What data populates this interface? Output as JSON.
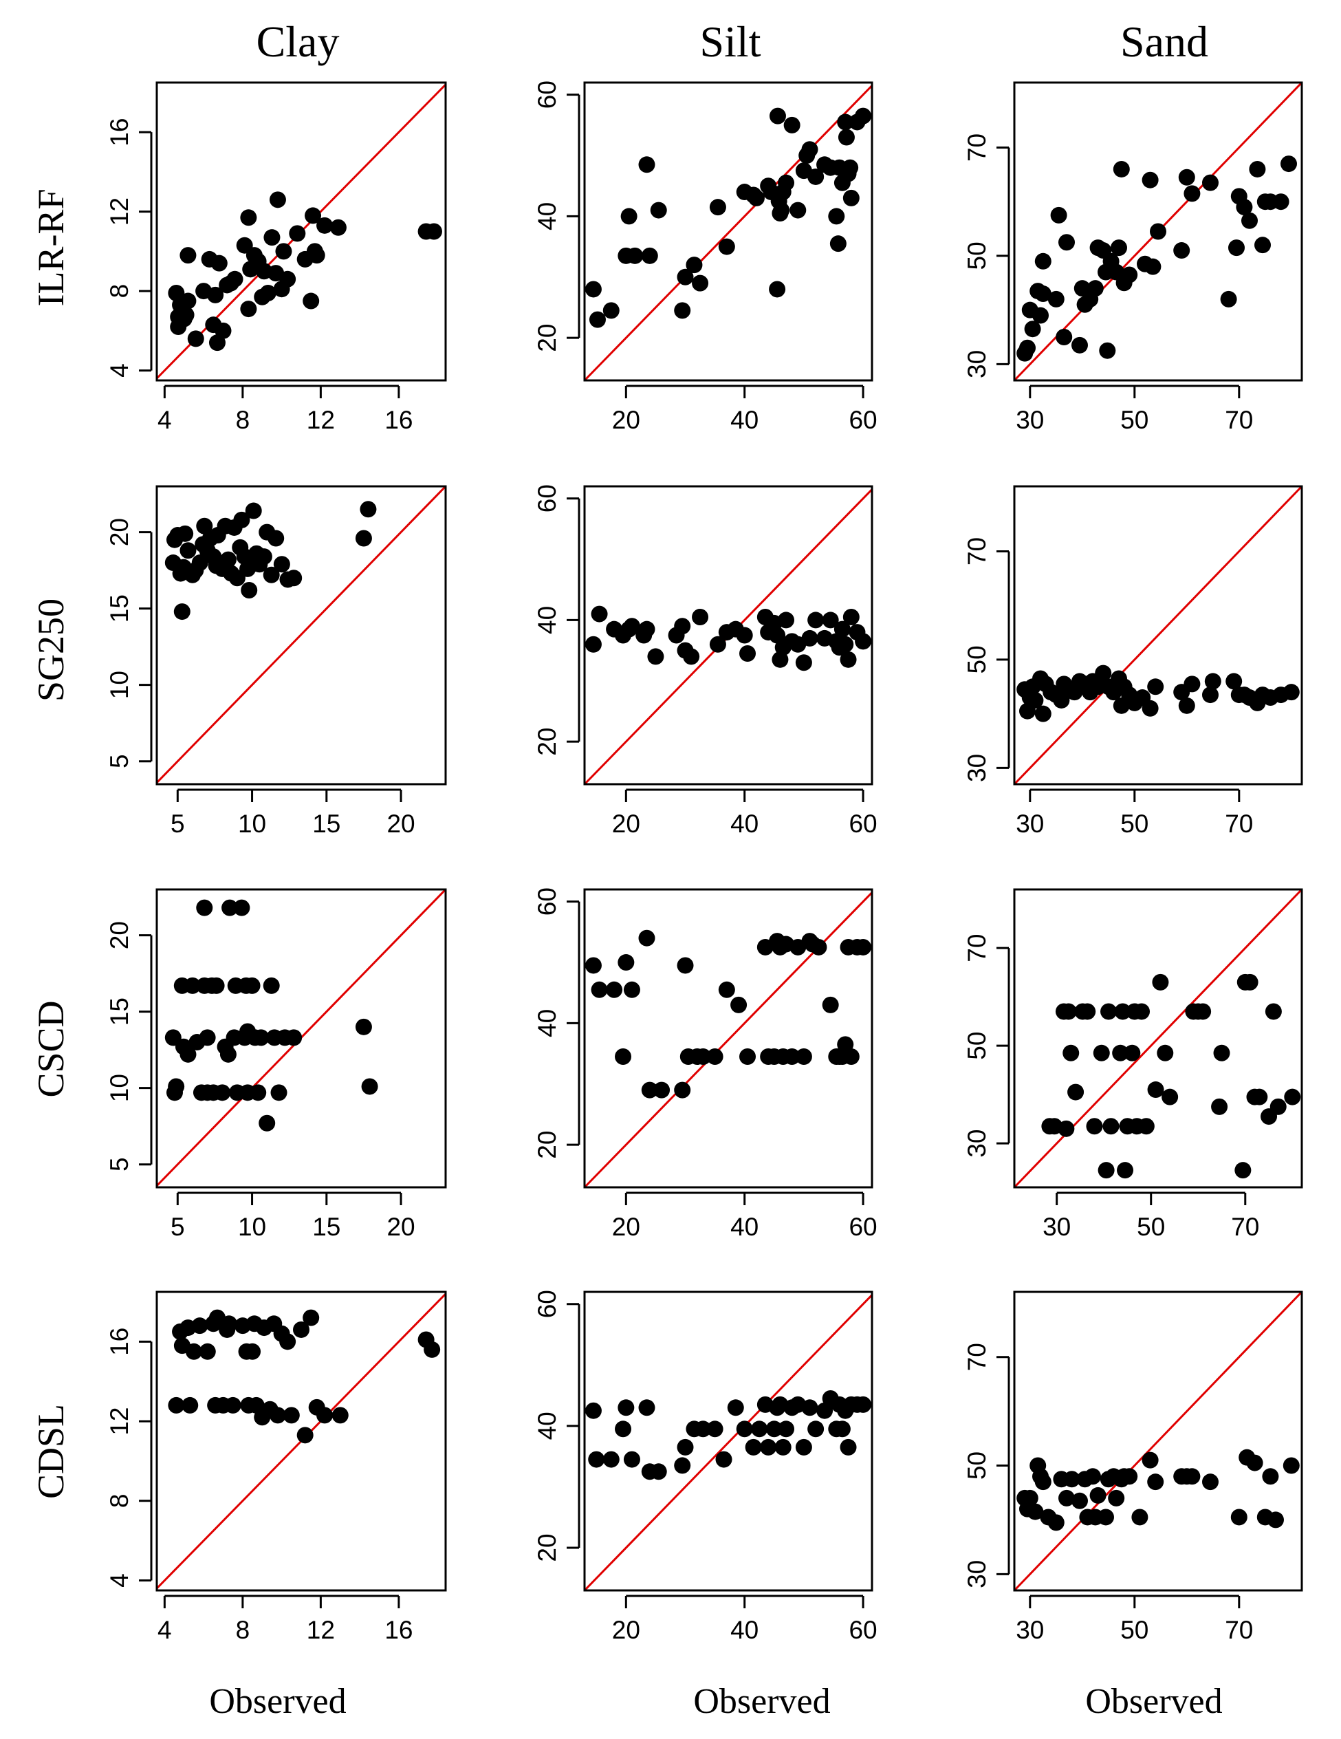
{
  "figure": {
    "column_titles": [
      "Clay",
      "Silt",
      "Sand"
    ],
    "row_labels": [
      "ILR-RF",
      "SG250",
      "CSCD",
      "CDSL"
    ],
    "x_axis_label": "Observed",
    "colors": {
      "points": "#000000",
      "reference_line": "#e00000"
    }
  },
  "chart_data": [
    {
      "id": "ilr-clay",
      "row": "ILR-RF",
      "col": "Clay",
      "type": "scatter",
      "xlim": [
        3.6,
        18.4
      ],
      "ylim": [
        3.5,
        18.5
      ],
      "xticks": [
        4,
        8,
        12,
        16
      ],
      "yticks": [
        4,
        8,
        12,
        16
      ],
      "xticks_shown": true,
      "reference_line": "1:1",
      "x": [
        4.6,
        4.7,
        4.7,
        4.8,
        5.0,
        5.1,
        5.2,
        5.2,
        5.6,
        6.0,
        6.3,
        6.5,
        6.6,
        6.7,
        6.8,
        7.0,
        7.2,
        7.4,
        7.6,
        8.1,
        8.3,
        8.3,
        8.4,
        8.6,
        8.8,
        9.0,
        9.1,
        9.3,
        9.5,
        9.7,
        9.8,
        10.0,
        10.1,
        10.3,
        10.8,
        11.2,
        11.5,
        11.6,
        11.7,
        11.8,
        12.2,
        12.9,
        17.4,
        17.8
      ],
      "y": [
        7.9,
        6.2,
        6.7,
        7.3,
        6.6,
        6.8,
        9.8,
        7.5,
        5.6,
        8.0,
        9.6,
        6.3,
        7.8,
        5.4,
        9.4,
        6.0,
        8.3,
        8.4,
        8.6,
        10.3,
        7.1,
        11.7,
        9.1,
        9.8,
        9.5,
        7.7,
        9.0,
        7.9,
        10.7,
        8.9,
        12.6,
        8.1,
        10.0,
        8.6,
        10.9,
        9.6,
        7.5,
        11.8,
        10.0,
        9.8,
        11.3,
        11.2,
        11.0,
        11.0
      ]
    },
    {
      "id": "ilr-silt",
      "row": "ILR-RF",
      "col": "Silt",
      "type": "scatter",
      "xlim": [
        13,
        61.5
      ],
      "ylim": [
        13,
        62
      ],
      "xticks": [
        20,
        40,
        60
      ],
      "yticks": [
        20,
        40,
        60
      ],
      "xticks_shown": true,
      "reference_line": "1:1",
      "x": [
        14.5,
        15.2,
        17.5,
        20.0,
        20.5,
        21.5,
        23.5,
        24.0,
        25.5,
        29.5,
        30.0,
        31.5,
        32.5,
        35.5,
        37.0,
        40.0,
        41.5,
        42.0,
        44.0,
        44.5,
        45.5,
        45.6,
        45.8,
        46.0,
        46.2,
        46.5,
        47.0,
        48.0,
        49.0,
        50.0,
        50.5,
        51.0,
        52.0,
        53.5,
        54.5,
        55.5,
        55.8,
        56.0,
        56.5,
        57.0,
        57.2,
        57.5,
        57.8,
        58.0,
        59.0,
        60.0
      ],
      "y": [
        28.0,
        23.0,
        24.5,
        33.5,
        40.0,
        33.5,
        48.5,
        33.5,
        41.0,
        24.5,
        30.0,
        32.0,
        29.0,
        41.5,
        35.0,
        44.0,
        43.5,
        43.0,
        45.0,
        44.0,
        28.0,
        56.5,
        42.5,
        40.5,
        41.0,
        44.0,
        45.5,
        55.0,
        41.0,
        47.5,
        50.0,
        51.0,
        46.5,
        48.5,
        48.0,
        40.0,
        35.5,
        48.0,
        45.5,
        55.5,
        53.0,
        47.0,
        48.0,
        43.0,
        55.5,
        56.5
      ]
    },
    {
      "id": "ilr-sand",
      "row": "ILR-RF",
      "col": "Sand",
      "type": "scatter",
      "xlim": [
        27,
        82
      ],
      "ylim": [
        27,
        82
      ],
      "xticks": [
        30,
        50,
        70
      ],
      "yticks": [
        30,
        50,
        70
      ],
      "xticks_shown": true,
      "reference_line": "1:1",
      "x": [
        29.0,
        29.5,
        30.0,
        30.5,
        31.5,
        32.0,
        32.5,
        32.5,
        35.0,
        35.5,
        36.5,
        37.0,
        39.5,
        40.0,
        40.5,
        41.5,
        42.5,
        43.0,
        44.0,
        44.5,
        44.8,
        45.5,
        46.5,
        47.0,
        47.5,
        48.0,
        49.0,
        52.0,
        53.0,
        53.5,
        54.5,
        59.0,
        60.0,
        61.0,
        64.5,
        68.0,
        69.5,
        70.0,
        71.0,
        72.0,
        73.5,
        74.5,
        75.0,
        76.0,
        78.0,
        79.5
      ],
      "y": [
        32.0,
        33.0,
        40.0,
        36.5,
        43.5,
        39.0,
        49.0,
        43.0,
        42.0,
        57.5,
        35.0,
        52.5,
        33.5,
        44.0,
        41.0,
        42.0,
        44.0,
        51.5,
        51.0,
        47.0,
        32.5,
        49.0,
        47.0,
        51.5,
        66.0,
        45.0,
        46.5,
        48.5,
        64.0,
        48.0,
        54.5,
        51.0,
        64.5,
        61.5,
        63.5,
        42.0,
        51.5,
        61.0,
        59.0,
        56.5,
        66.0,
        52.0,
        60.0,
        60.0,
        60.0,
        67.0
      ]
    },
    {
      "id": "sg250-clay",
      "row": "SG250",
      "col": "Clay",
      "type": "scatter",
      "xlim": [
        3.6,
        23
      ],
      "ylim": [
        3.5,
        23
      ],
      "xticks": [
        5,
        10,
        15,
        20
      ],
      "yticks": [
        5,
        10,
        15,
        20
      ],
      "xticks_shown": true,
      "reference_line": "1:1",
      "x": [
        4.7,
        4.8,
        5.0,
        5.2,
        5.3,
        5.4,
        5.5,
        5.7,
        6.0,
        6.2,
        6.5,
        6.7,
        6.8,
        7.0,
        7.2,
        7.4,
        7.6,
        7.7,
        8.0,
        8.2,
        8.4,
        8.6,
        8.8,
        9.0,
        9.2,
        9.3,
        9.5,
        9.7,
        9.8,
        10.0,
        10.1,
        10.3,
        10.5,
        10.8,
        11.0,
        11.3,
        11.6,
        12.0,
        12.4,
        12.8,
        17.5,
        17.8
      ],
      "y": [
        18.0,
        19.5,
        19.8,
        17.3,
        14.8,
        17.7,
        19.9,
        18.8,
        17.2,
        17.5,
        18.0,
        19.2,
        20.4,
        18.8,
        19.6,
        18.4,
        17.8,
        19.8,
        17.6,
        20.4,
        18.2,
        17.3,
        20.3,
        17.0,
        19.0,
        20.8,
        18.4,
        17.6,
        16.2,
        17.9,
        21.4,
        18.6,
        17.9,
        18.4,
        20.0,
        17.2,
        19.6,
        17.9,
        16.9,
        17.0,
        19.6,
        21.5
      ]
    },
    {
      "id": "sg250-silt",
      "row": "SG250",
      "col": "Silt",
      "type": "scatter",
      "xlim": [
        13,
        61.5
      ],
      "ylim": [
        13,
        62
      ],
      "xticks": [
        20,
        40,
        60
      ],
      "yticks": [
        20,
        40,
        60
      ],
      "xticks_shown": true,
      "reference_line": "1:1",
      "x": [
        14.5,
        15.5,
        18.0,
        19.5,
        20.5,
        21.0,
        23.0,
        23.5,
        25.0,
        28.5,
        29.5,
        30.0,
        31.0,
        32.5,
        35.5,
        37.0,
        38.5,
        40.0,
        40.5,
        43.5,
        44.0,
        45.0,
        45.5,
        46.0,
        46.5,
        47.0,
        48.0,
        49.0,
        50.0,
        51.0,
        52.0,
        53.5,
        54.5,
        55.5,
        56.0,
        56.5,
        57.0,
        57.5,
        58.0,
        59.0,
        60.0
      ],
      "y": [
        36.0,
        41.0,
        38.5,
        37.5,
        38.5,
        39.0,
        37.5,
        38.5,
        34.0,
        37.5,
        39.0,
        35.0,
        34.0,
        40.5,
        36.0,
        38.0,
        38.5,
        37.5,
        34.5,
        40.5,
        38.0,
        39.5,
        37.5,
        33.5,
        35.5,
        40.0,
        36.5,
        36.0,
        33.0,
        37.0,
        40.0,
        37.0,
        40.0,
        36.5,
        35.5,
        38.5,
        36.0,
        33.5,
        40.5,
        38.0,
        36.5
      ]
    },
    {
      "id": "sg250-sand",
      "row": "SG250",
      "col": "Sand",
      "type": "scatter",
      "xlim": [
        27,
        82
      ],
      "ylim": [
        27,
        82
      ],
      "xticks": [
        30,
        50,
        70
      ],
      "yticks": [
        30,
        50,
        70
      ],
      "xticks_shown": true,
      "reference_line": "1:1",
      "x": [
        29.0,
        29.5,
        30.0,
        30.5,
        31.0,
        32.0,
        32.5,
        33.0,
        34.0,
        35.0,
        36.0,
        36.5,
        37.5,
        38.5,
        39.5,
        40.5,
        41.5,
        42.0,
        43.0,
        44.0,
        45.0,
        46.0,
        47.0,
        47.5,
        48.0,
        49.0,
        50.0,
        51.5,
        53.0,
        54.0,
        59.0,
        60.0,
        61.0,
        64.5,
        65.0,
        69.0,
        70.0,
        71.0,
        72.0,
        73.5,
        74.5,
        76.0,
        78.0,
        80.0
      ],
      "y": [
        44.5,
        40.5,
        43.0,
        45.0,
        42.5,
        46.5,
        40.0,
        45.5,
        44.0,
        43.5,
        42.5,
        45.5,
        44.5,
        44.0,
        46.0,
        45.5,
        44.0,
        46.0,
        45.0,
        47.5,
        45.0,
        44.0,
        46.5,
        41.5,
        45.0,
        43.5,
        42.0,
        43.0,
        41.0,
        45.0,
        44.0,
        41.5,
        45.5,
        43.5,
        46.0,
        46.0,
        43.5,
        43.5,
        43.0,
        42.0,
        43.5,
        43.0,
        43.5,
        44.0
      ]
    },
    {
      "id": "cscd-clay",
      "row": "CSCD",
      "col": "Clay",
      "type": "scatter",
      "xlim": [
        3.6,
        23
      ],
      "ylim": [
        3.5,
        23
      ],
      "xticks": [
        5,
        10,
        15,
        20
      ],
      "yticks": [
        5,
        10,
        15,
        20
      ],
      "xticks_shown": true,
      "reference_line": "1:1",
      "x": [
        4.7,
        4.8,
        4.9,
        5.3,
        5.4,
        5.7,
        6.0,
        6.3,
        6.6,
        6.8,
        6.8,
        7.0,
        7.0,
        7.3,
        7.4,
        7.6,
        8.0,
        8.2,
        8.4,
        8.5,
        8.8,
        8.9,
        9.0,
        9.3,
        9.5,
        9.6,
        9.7,
        9.7,
        10.0,
        10.2,
        10.4,
        10.6,
        11.0,
        11.3,
        11.5,
        11.8,
        12.2,
        12.8,
        17.5,
        17.9
      ],
      "y": [
        13.3,
        9.7,
        10.1,
        16.7,
        12.7,
        12.2,
        16.7,
        13.0,
        9.7,
        16.7,
        21.8,
        13.3,
        9.7,
        16.7,
        9.7,
        16.7,
        9.7,
        12.7,
        12.2,
        21.8,
        13.3,
        16.7,
        9.7,
        21.8,
        13.3,
        16.7,
        9.7,
        13.7,
        16.7,
        13.3,
        9.7,
        13.3,
        7.7,
        16.7,
        13.3,
        9.7,
        13.3,
        13.3,
        14.0,
        10.1
      ]
    },
    {
      "id": "cscd-silt",
      "row": "CSCD",
      "col": "Silt",
      "type": "scatter",
      "xlim": [
        13,
        61.5
      ],
      "ylim": [
        13,
        62
      ],
      "xticks": [
        20,
        40,
        60
      ],
      "yticks": [
        20,
        40,
        60
      ],
      "xticks_shown": true,
      "reference_line": "1:1",
      "x": [
        14.5,
        15.5,
        18.0,
        19.5,
        20.0,
        21.0,
        23.5,
        24.0,
        26.0,
        29.5,
        30.0,
        30.5,
        32.0,
        33.0,
        35.0,
        37.0,
        39.0,
        40.5,
        43.5,
        44.0,
        45.0,
        45.5,
        46.0,
        46.5,
        47.0,
        48.0,
        49.0,
        50.0,
        51.0,
        51.5,
        52.5,
        54.5,
        55.5,
        56.0,
        56.5,
        57.0,
        57.5,
        58.0,
        59.0,
        60.0
      ],
      "y": [
        49.5,
        45.5,
        45.5,
        34.5,
        50.0,
        45.5,
        54.0,
        29.0,
        29.0,
        29.0,
        49.5,
        34.5,
        34.5,
        34.5,
        34.5,
        45.5,
        43.0,
        34.5,
        52.5,
        34.5,
        34.5,
        53.5,
        52.5,
        34.5,
        53.0,
        34.5,
        52.5,
        34.5,
        53.5,
        53.0,
        52.5,
        43.0,
        34.5,
        34.5,
        34.5,
        36.5,
        52.5,
        34.5,
        52.5,
        52.5
      ]
    },
    {
      "id": "cscd-sand",
      "row": "CSCD",
      "col": "Sand",
      "type": "scatter",
      "xlim": [
        21,
        82
      ],
      "ylim": [
        21,
        82
      ],
      "xticks": [
        30,
        50,
        70
      ],
      "yticks": [
        30,
        50,
        70
      ],
      "xticks_shown": true,
      "reference_line": "1:1",
      "x": [
        28.5,
        29.5,
        31.5,
        32.0,
        32.5,
        33.0,
        34.0,
        35.5,
        36.5,
        38.0,
        39.5,
        40.5,
        41.0,
        41.5,
        43.5,
        44.0,
        44.5,
        45.0,
        46.0,
        46.5,
        47.0,
        48.0,
        49.0,
        51.0,
        52.0,
        53.0,
        54.0,
        59.0,
        60.0,
        61.0,
        64.5,
        65.0,
        69.5,
        70.0,
        71.0,
        72.0,
        73.0,
        75.0,
        76.0,
        77.0,
        80.0
      ],
      "y": [
        33.5,
        33.5,
        57.0,
        33.0,
        57.0,
        48.5,
        40.5,
        57.0,
        57.0,
        33.5,
        48.5,
        24.5,
        57.0,
        33.5,
        48.5,
        57.0,
        24.5,
        33.5,
        48.5,
        57.0,
        33.5,
        57.0,
        33.5,
        41.0,
        63.0,
        48.5,
        39.5,
        57.0,
        57.0,
        57.0,
        37.5,
        48.5,
        24.5,
        63.0,
        63.0,
        39.5,
        39.5,
        35.5,
        57.0,
        37.5,
        39.5
      ]
    },
    {
      "id": "cdsl-clay",
      "row": "CDSL",
      "col": "Clay",
      "type": "scatter",
      "xlim": [
        3.6,
        18.4
      ],
      "ylim": [
        3.5,
        18.5
      ],
      "xticks": [
        4,
        8,
        12,
        16
      ],
      "yticks": [
        4,
        8,
        12,
        16
      ],
      "xticks_shown": true,
      "reference_line": "1:1",
      "x": [
        4.6,
        4.8,
        4.9,
        5.2,
        5.3,
        5.5,
        5.8,
        6.2,
        6.5,
        6.6,
        6.7,
        7.0,
        7.2,
        7.3,
        7.5,
        8.0,
        8.2,
        8.3,
        8.5,
        8.6,
        8.7,
        9.0,
        9.1,
        9.4,
        9.6,
        9.8,
        10.0,
        10.3,
        10.5,
        11.0,
        11.2,
        11.5,
        11.8,
        12.2,
        13.0,
        17.4,
        17.7
      ],
      "y": [
        12.8,
        16.5,
        15.8,
        16.7,
        12.8,
        15.5,
        16.8,
        15.5,
        16.9,
        12.8,
        17.2,
        12.8,
        16.6,
        16.9,
        12.8,
        16.8,
        15.5,
        12.8,
        15.5,
        16.9,
        12.8,
        12.2,
        16.7,
        12.6,
        16.9,
        12.3,
        16.4,
        16.0,
        12.3,
        16.6,
        11.3,
        17.2,
        12.7,
        12.3,
        12.3,
        16.1,
        15.6
      ]
    },
    {
      "id": "cdsl-silt",
      "row": "CDSL",
      "col": "Silt",
      "type": "scatter",
      "xlim": [
        13,
        61.5
      ],
      "ylim": [
        13,
        62
      ],
      "xticks": [
        20,
        40,
        60
      ],
      "yticks": [
        20,
        40,
        60
      ],
      "xticks_shown": true,
      "reference_line": "1:1",
      "x": [
        14.5,
        15.0,
        17.5,
        19.5,
        20.0,
        21.0,
        23.5,
        24.0,
        25.5,
        29.5,
        30.0,
        31.5,
        33.0,
        35.0,
        36.5,
        38.5,
        40.0,
        41.5,
        42.5,
        43.5,
        44.0,
        45.0,
        45.5,
        46.0,
        46.5,
        47.0,
        48.0,
        49.0,
        50.0,
        51.0,
        52.0,
        53.5,
        54.5,
        55.5,
        56.0,
        56.5,
        57.0,
        57.5,
        58.0,
        59.0,
        60.0
      ],
      "y": [
        42.5,
        34.5,
        34.5,
        39.5,
        43.0,
        34.5,
        43.0,
        32.5,
        32.5,
        33.5,
        36.5,
        39.5,
        39.5,
        39.5,
        34.5,
        43.0,
        39.5,
        36.5,
        39.5,
        43.5,
        36.5,
        39.5,
        43.0,
        43.5,
        36.5,
        39.5,
        43.0,
        43.5,
        36.5,
        43.0,
        39.5,
        42.5,
        44.5,
        39.5,
        43.5,
        39.5,
        42.5,
        36.5,
        43.5,
        43.5,
        43.5
      ]
    },
    {
      "id": "cdsl-sand",
      "row": "CDSL",
      "col": "Sand",
      "type": "scatter",
      "xlim": [
        27,
        82
      ],
      "ylim": [
        27,
        82
      ],
      "xticks": [
        30,
        50,
        70
      ],
      "yticks": [
        30,
        50,
        70
      ],
      "xticks_shown": true,
      "reference_line": "1:1",
      "x": [
        29.0,
        29.5,
        30.0,
        31.0,
        31.5,
        32.0,
        32.5,
        33.5,
        35.0,
        36.0,
        37.0,
        38.0,
        39.5,
        40.5,
        41.0,
        42.0,
        42.5,
        43.0,
        44.5,
        45.0,
        46.0,
        46.5,
        47.5,
        48.0,
        49.0,
        51.0,
        53.0,
        54.0,
        59.0,
        60.0,
        61.0,
        64.5,
        70.0,
        71.5,
        73.0,
        75.0,
        76.0,
        77.0,
        80.0
      ],
      "y": [
        44.0,
        42.0,
        44.0,
        41.5,
        50.0,
        48.0,
        47.0,
        40.5,
        39.5,
        47.5,
        44.0,
        47.5,
        43.5,
        47.5,
        40.5,
        48.0,
        40.5,
        44.5,
        40.5,
        47.5,
        48.0,
        44.0,
        47.5,
        48.0,
        48.0,
        40.5,
        51.0,
        47.0,
        48.0,
        48.0,
        48.0,
        47.0,
        40.5,
        51.5,
        50.5,
        40.5,
        48.0,
        40.0,
        50.0
      ]
    }
  ]
}
